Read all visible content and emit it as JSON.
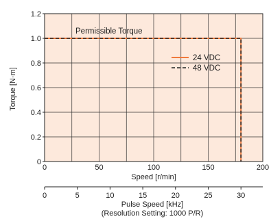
{
  "chart_data": {
    "type": "line",
    "title": "",
    "xlabel": "Speed [r/min]",
    "ylabel": "Torque [N·m]",
    "xlim": [
      0,
      200
    ],
    "ylim": [
      0,
      1.2
    ],
    "x_ticks": [
      "0",
      "50",
      "100",
      "150",
      "200"
    ],
    "x_tick_values": [
      0,
      50,
      100,
      150,
      200
    ],
    "y_ticks": [
      "0",
      "0.2",
      "0.4",
      "0.6",
      "0.8",
      "1.0",
      "1.2"
    ],
    "y_tick_values": [
      0,
      0.2,
      0.4,
      0.6,
      0.8,
      1.0,
      1.2
    ],
    "grid": true,
    "background_color": "#fde9dc",
    "annotation": "Permissible Torque",
    "legend_position": "right-center",
    "series": [
      {
        "name": "24 VDC",
        "color": "#f07a3c",
        "style": "solid",
        "x": [
          0,
          180,
          180
        ],
        "y": [
          1.0,
          1.0,
          0
        ]
      },
      {
        "name": "48 VDC",
        "color": "#222222",
        "style": "dashed",
        "x": [
          0,
          180,
          180
        ],
        "y": [
          1.0,
          1.0,
          0
        ]
      }
    ],
    "secondary_axis": {
      "label": "Pulse Speed [kHz]",
      "sublabel": "(Resolution Setting: 1000 P/R)",
      "min": 0,
      "max": 33.333,
      "ticks": [
        "0",
        "5",
        "10",
        "15",
        "20",
        "25",
        "30"
      ],
      "tick_values": [
        0,
        5,
        10,
        15,
        20,
        25,
        30
      ]
    }
  }
}
